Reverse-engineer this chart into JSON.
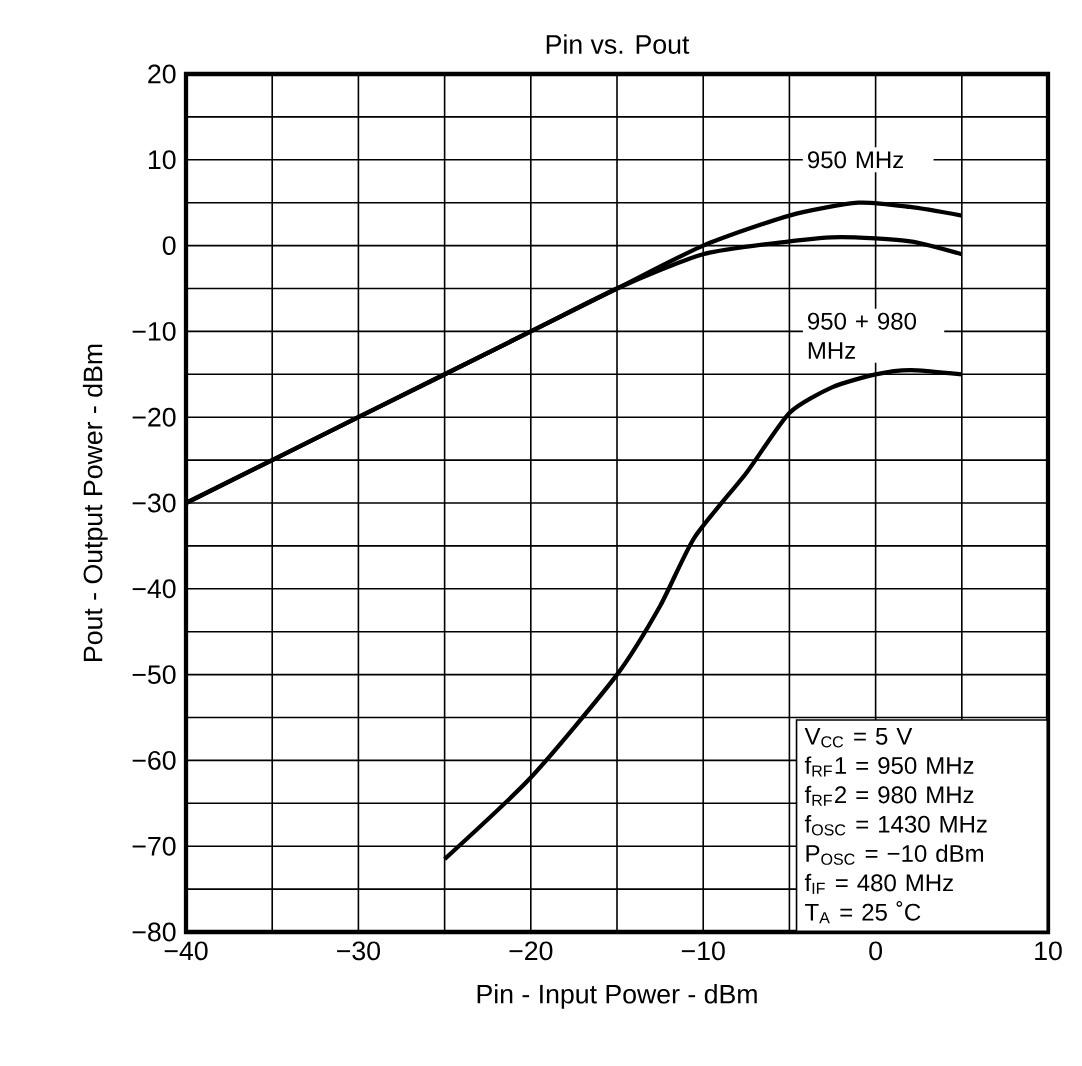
{
  "chart_data": {
    "type": "line",
    "title": "Pin vs. Pout",
    "xlabel": "Pin - Input Power - dBm",
    "ylabel": "Pout - Output Power - dBm",
    "xlim": [
      -40,
      10
    ],
    "ylim": [
      -80,
      20
    ],
    "xticks": [
      {
        "value": -40,
        "label": "−40"
      },
      {
        "value": -35,
        "label": null
      },
      {
        "value": -30,
        "label": "−30"
      },
      {
        "value": -25,
        "label": null
      },
      {
        "value": -20,
        "label": "−20"
      },
      {
        "value": -15,
        "label": null
      },
      {
        "value": -10,
        "label": "−10"
      },
      {
        "value": -5,
        "label": null
      },
      0,
      {
        "value": 5,
        "label": null
      },
      10
    ],
    "yticks": [
      {
        "value": -80,
        "label": "−80"
      },
      {
        "value": -75,
        "label": null
      },
      {
        "value": -70,
        "label": "−70"
      },
      {
        "value": -65,
        "label": null
      },
      {
        "value": -60,
        "label": "−60"
      },
      {
        "value": -55,
        "label": null
      },
      {
        "value": -50,
        "label": "−50"
      },
      {
        "value": -45,
        "label": null
      },
      {
        "value": -40,
        "label": "−40"
      },
      {
        "value": -35,
        "label": null
      },
      {
        "value": -30,
        "label": "−30"
      },
      {
        "value": -25,
        "label": null
      },
      {
        "value": -20,
        "label": "−20"
      },
      {
        "value": -15,
        "label": null
      },
      {
        "value": -10,
        "label": "−10"
      },
      {
        "value": -5,
        "label": null
      },
      0,
      {
        "value": 5,
        "label": null
      },
      10,
      {
        "value": 15,
        "label": null
      },
      20
    ],
    "grid": true,
    "series": [
      {
        "color": "#000000",
        "x": [
          -40,
          -30,
          -20,
          -15,
          -10,
          -5,
          -1,
          2,
          5
        ],
        "values": [
          -30,
          -20,
          -10,
          -5,
          0,
          3.5,
          5,
          4.5,
          3.5
        ]
      },
      {
        "color": "#000000",
        "x": [
          -40,
          -30,
          -20,
          -15,
          -10,
          -5,
          -2,
          2,
          5
        ],
        "values": [
          -30,
          -20,
          -10,
          -5,
          -1,
          0.5,
          1,
          0.5,
          -1
        ]
      },
      {
        "color": "#000000",
        "x": [
          -25,
          -20,
          -15,
          -12.5,
          -10.5,
          -7.5,
          -5,
          -2.5,
          0,
          2,
          5
        ],
        "values": [
          -71.5,
          -62,
          -50,
          -42,
          -34,
          -26.5,
          -19.5,
          -16.5,
          -15,
          -14.5,
          -15
        ]
      }
    ],
    "annotations": [
      "950 MHz",
      "950 + 980 MHz",
      "V$_{CC}$ = 5 V",
      "f$_{RF}$1 = 950 MHz",
      "f$_{RF}$2 = 980 MHz",
      "f$_{OSC}$ = 1430 MHz",
      "P$_{OSC}$ = −10 dBm",
      "f$_{IF}$ = 480 MHz",
      "T$_{A}$ = 25 ˚C"
    ]
  }
}
